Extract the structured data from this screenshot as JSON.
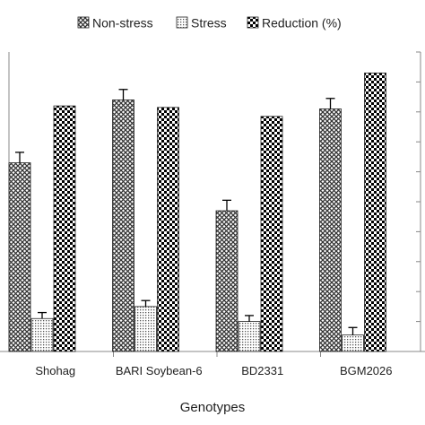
{
  "chart_data": {
    "type": "bar",
    "categories": [
      "Shohag",
      "BARI Soybean-6",
      "BD2331",
      "BGM2026"
    ],
    "series": [
      {
        "name": "Non-stress",
        "values": [
          6.3,
          8.4,
          4.7,
          8.1
        ],
        "errors": [
          0.35,
          0.35,
          0.35,
          0.35
        ],
        "pattern": "crosshatch"
      },
      {
        "name": "Stress",
        "values": [
          1.1,
          1.5,
          1.0,
          0.55
        ],
        "errors": [
          0.2,
          0.2,
          0.2,
          0.25
        ],
        "pattern": "dots"
      },
      {
        "name": "Reduction (%)",
        "values": [
          8.2,
          8.15,
          7.85,
          9.3
        ],
        "errors": [
          0,
          0,
          0,
          0
        ],
        "pattern": "checker"
      }
    ],
    "xlabel": "Genotypes",
    "ylabel": "",
    "ylim": [
      0,
      10
    ],
    "legend_position": "top",
    "grid": false
  }
}
